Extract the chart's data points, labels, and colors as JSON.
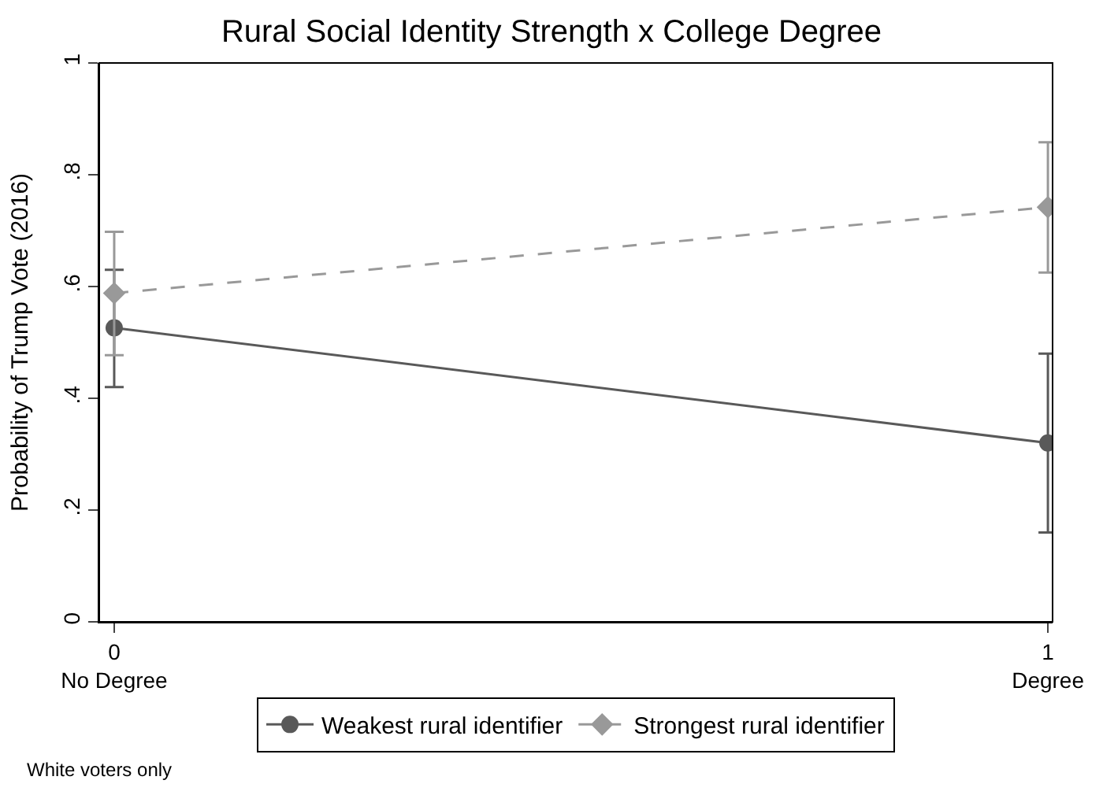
{
  "chart_data": {
    "type": "line",
    "title": "Rural Social Identity Strength x College Degree",
    "ylabel": "Probability of Trump Vote (2016)",
    "x": [
      0,
      1
    ],
    "xlim": [
      -0.016,
      1.005
    ],
    "xticks": [
      {
        "value": 0,
        "label": "0\nNo Degree"
      },
      {
        "value": 1,
        "label": "1\nDegree"
      }
    ],
    "ylim": [
      0,
      1.0
    ],
    "yticks": [
      {
        "value": 0,
        "label": "0"
      },
      {
        "value": 0.2,
        "label": ".2"
      },
      {
        "value": 0.4,
        "label": ".4"
      },
      {
        "value": 0.6,
        "label": ".6"
      },
      {
        "value": 0.8,
        "label": ".8"
      },
      {
        "value": 1,
        "label": "1"
      }
    ],
    "series": [
      {
        "name": "Weakest rural identifier",
        "color": "#595959",
        "values": [
          0.526,
          0.32
        ],
        "errors": [
          [
            0.42,
            0.63
          ],
          [
            0.16,
            0.48
          ]
        ],
        "marker": "circle",
        "line_style": "solid"
      },
      {
        "name": "Strongest rural identifier",
        "color": "#999999",
        "values": [
          0.588,
          0.742
        ],
        "errors": [
          [
            0.477,
            0.698
          ],
          [
            0.625,
            0.858
          ]
        ],
        "marker": "diamond",
        "line_style": "dashed"
      }
    ],
    "legend": "bottom",
    "annotations": [
      "White voters only"
    ]
  }
}
